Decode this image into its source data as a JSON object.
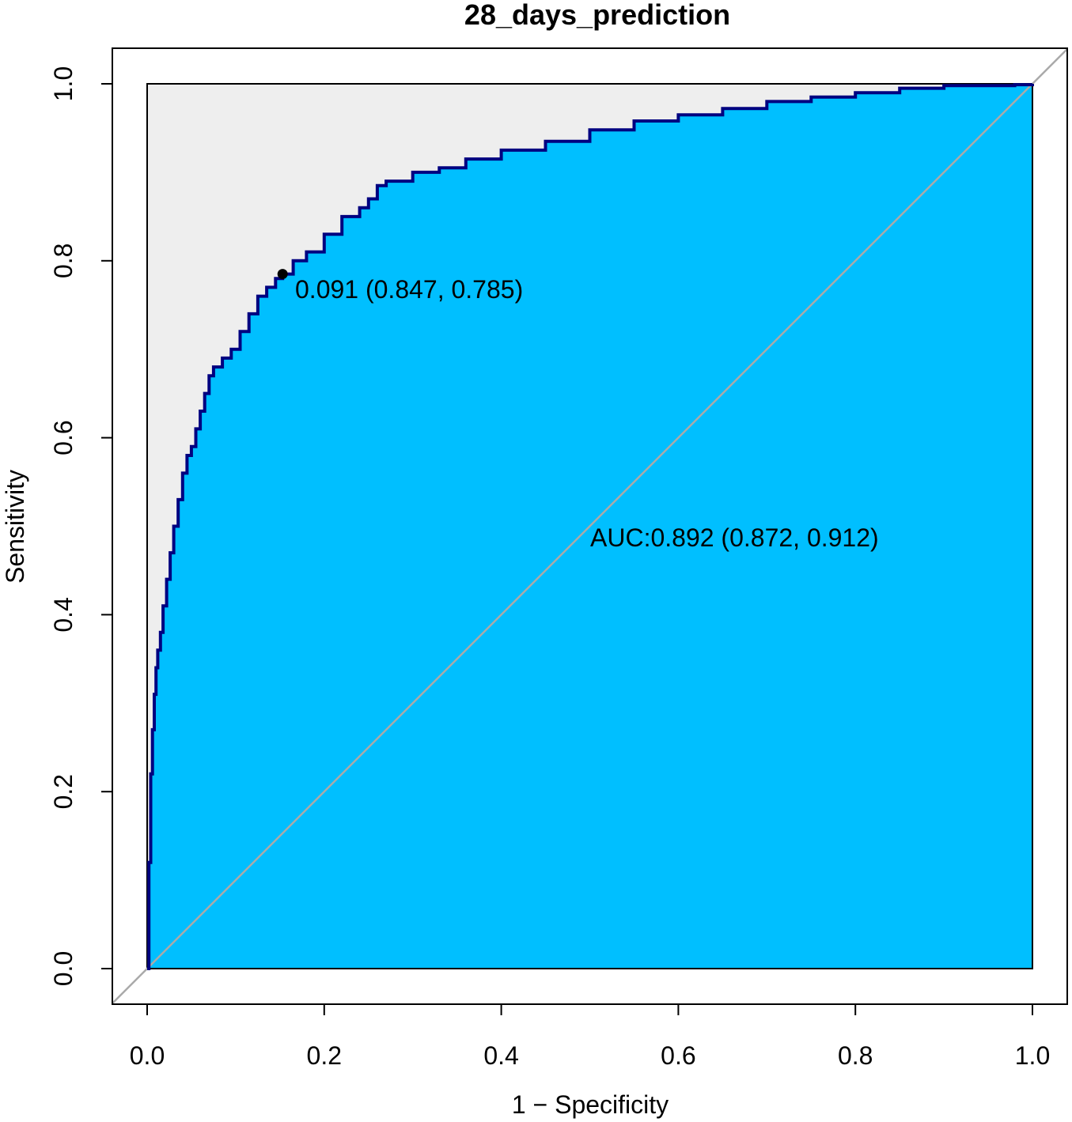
{
  "chart_data": {
    "type": "area",
    "title": "28_days_prediction",
    "xlabel": "1 − Specificity",
    "ylabel": "Sensitivity",
    "xlim": [
      0,
      1
    ],
    "ylim": [
      0,
      1
    ],
    "x_ticks": [
      "0.0",
      "0.2",
      "0.4",
      "0.6",
      "0.8",
      "1.0"
    ],
    "y_ticks": [
      "0.0",
      "0.2",
      "0.4",
      "0.6",
      "0.8",
      "1.0"
    ],
    "grid": false,
    "legend": "none",
    "series": [
      {
        "x": [
          0.0,
          0.002,
          0.004,
          0.006,
          0.008,
          0.01,
          0.012,
          0.015,
          0.018,
          0.022,
          0.026,
          0.03,
          0.035,
          0.04,
          0.045,
          0.05,
          0.055,
          0.06,
          0.065,
          0.07,
          0.075,
          0.085,
          0.095,
          0.105,
          0.115,
          0.125,
          0.135,
          0.145,
          0.153,
          0.165,
          0.18,
          0.2,
          0.22,
          0.24,
          0.25,
          0.26,
          0.27,
          0.3,
          0.33,
          0.36,
          0.4,
          0.45,
          0.5,
          0.55,
          0.6,
          0.65,
          0.7,
          0.75,
          0.8,
          0.85,
          0.9,
          0.95,
          0.98,
          1.0
        ],
        "y": [
          0.0,
          0.12,
          0.22,
          0.27,
          0.31,
          0.34,
          0.36,
          0.38,
          0.41,
          0.44,
          0.47,
          0.5,
          0.53,
          0.56,
          0.58,
          0.59,
          0.61,
          0.63,
          0.65,
          0.67,
          0.68,
          0.69,
          0.7,
          0.72,
          0.74,
          0.76,
          0.77,
          0.78,
          0.785,
          0.8,
          0.81,
          0.83,
          0.85,
          0.86,
          0.87,
          0.885,
          0.89,
          0.9,
          0.905,
          0.915,
          0.925,
          0.935,
          0.948,
          0.958,
          0.965,
          0.972,
          0.98,
          0.985,
          0.99,
          0.995,
          0.998,
          0.998,
          0.999,
          1.0
        ]
      }
    ],
    "fill_color": "#00BFFF",
    "line_color": "#000080",
    "background_color": "#EEEEEE",
    "diagonal_color": "#AAAAAA",
    "cutoff_point": {
      "x": 0.153,
      "y": 0.785
    },
    "cutoff_label": "0.091 (0.847, 0.785)",
    "auc_label": "AUC:0.892 (0.872, 0.912)",
    "auc_label_anchor": {
      "x": 0.5,
      "y": 0.48
    }
  }
}
